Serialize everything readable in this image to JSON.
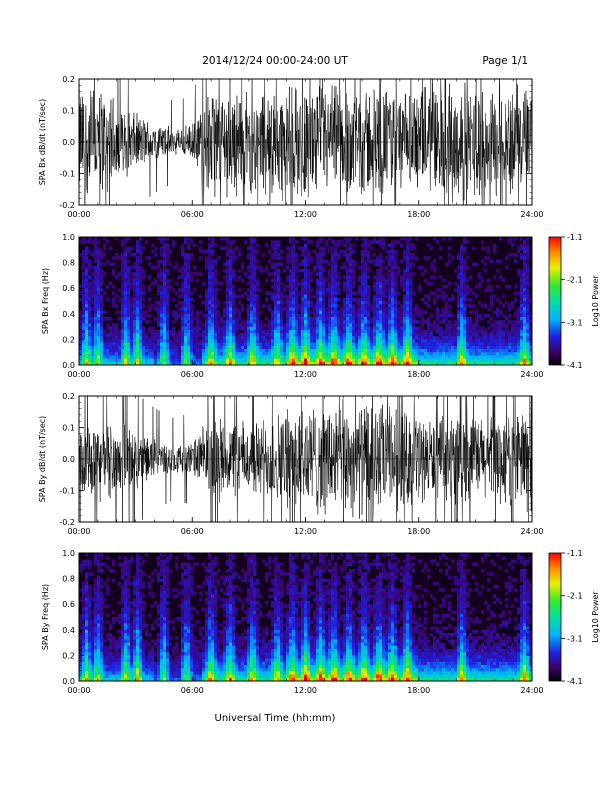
{
  "header": {
    "title": "2014/12/24  00:00-24:00 UT",
    "page": "Page 1/1"
  },
  "xaxis": {
    "label": "Universal Time (hh:mm)",
    "ticks": [
      "00:00",
      "06:00",
      "12:00",
      "18:00",
      "24:00"
    ],
    "range_hours": [
      0,
      24
    ]
  },
  "colors": {
    "spectrogram_background": "#14001e",
    "trace": "#000000"
  },
  "chart_data": [
    {
      "id": "bx-trace",
      "type": "line",
      "ylabel": "SPA Bx dB/dt (nT/sec)",
      "ylim": [
        -0.2,
        0.2
      ],
      "yticks": [
        "0.2",
        "0.1",
        "0.0",
        "-0.1",
        "-0.2"
      ],
      "x_hours": [
        0,
        1,
        2,
        3,
        4,
        5,
        6,
        7,
        8,
        9,
        10,
        11,
        12,
        13,
        14,
        15,
        16,
        17,
        18,
        19,
        20,
        21,
        22,
        23,
        24
      ],
      "amplitude": [
        0.2,
        0.2,
        0.15,
        0.1,
        0.07,
        0.05,
        0.06,
        0.2,
        0.2,
        0.18,
        0.2,
        0.2,
        0.2,
        0.2,
        0.2,
        0.2,
        0.2,
        0.18,
        0.18,
        0.2,
        0.2,
        0.2,
        0.2,
        0.2,
        0.2
      ]
    },
    {
      "id": "bx-spectrogram",
      "type": "heatmap",
      "ylabel": "SPA Bx Freq (Hz)",
      "ylim": [
        0.0,
        1.0
      ],
      "yticks": [
        "1.0",
        "0.8",
        "0.6",
        "0.4",
        "0.2",
        "0.0"
      ],
      "colorbar": {
        "label": "Log10 Power",
        "ticks": [
          "-1.1",
          "-2.1",
          "-3.1",
          "-4.1"
        ],
        "range": [
          -4.1,
          -1.1
        ]
      },
      "bursts_hours": [
        0.4,
        1.0,
        2.5,
        3.1,
        4.5,
        5.7,
        7.0,
        8.0,
        9.2,
        10.5,
        11.3,
        12.0,
        12.8,
        13.5,
        14.3,
        15.1,
        15.9,
        16.6,
        17.4,
        20.3,
        23.6
      ]
    },
    {
      "id": "by-trace",
      "type": "line",
      "ylabel": "SPA By dB/dt (nT/sec)",
      "ylim": [
        -0.2,
        0.2
      ],
      "yticks": [
        "0.2",
        "0.1",
        "0.0",
        "-0.1",
        "-0.2"
      ],
      "x_hours": [
        0,
        1,
        2,
        3,
        4,
        5,
        6,
        7,
        8,
        9,
        10,
        11,
        12,
        13,
        14,
        15,
        16,
        17,
        18,
        19,
        20,
        21,
        22,
        23,
        24
      ],
      "amplitude": [
        0.12,
        0.14,
        0.13,
        0.1,
        0.07,
        0.05,
        0.06,
        0.15,
        0.14,
        0.13,
        0.15,
        0.18,
        0.2,
        0.2,
        0.2,
        0.2,
        0.2,
        0.18,
        0.15,
        0.14,
        0.15,
        0.15,
        0.15,
        0.18,
        0.2
      ]
    },
    {
      "id": "by-spectrogram",
      "type": "heatmap",
      "ylabel": "SPA By Freq (Hz)",
      "ylim": [
        0.0,
        1.0
      ],
      "yticks": [
        "1.0",
        "0.8",
        "0.6",
        "0.4",
        "0.2",
        "0.0"
      ],
      "colorbar": {
        "label": "Log10 Power",
        "ticks": [
          "-1.1",
          "-2.1",
          "-3.1",
          "-4.1"
        ],
        "range": [
          -4.1,
          -1.1
        ]
      },
      "bursts_hours": [
        0.4,
        1.0,
        2.5,
        3.1,
        4.5,
        5.7,
        7.0,
        8.0,
        9.2,
        10.5,
        11.3,
        12.0,
        12.8,
        13.5,
        14.3,
        15.1,
        15.9,
        16.6,
        17.4,
        20.3,
        23.6
      ]
    }
  ]
}
